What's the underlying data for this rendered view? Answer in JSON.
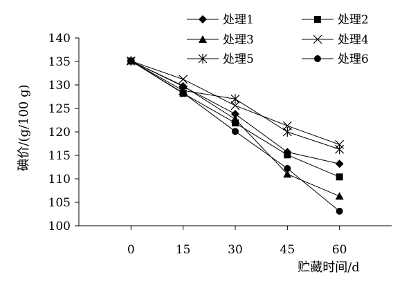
{
  "chart_data": {
    "type": "line",
    "title": "",
    "xlabel": "贮藏时间/d",
    "ylabel": "碘价/(g/100 g)",
    "x": [
      0,
      15,
      30,
      45,
      60
    ],
    "xlim": [
      -15,
      75
    ],
    "ylim": [
      100,
      140
    ],
    "yticks": [
      100,
      105,
      110,
      115,
      120,
      125,
      130,
      135,
      140
    ],
    "grid": false,
    "legend_position": "top-right",
    "series": [
      {
        "name": "处理1",
        "marker": "diamond",
        "values": [
          135.1,
          129.7,
          123.8,
          115.7,
          113.2
        ]
      },
      {
        "name": "处理2",
        "marker": "square",
        "values": [
          135.1,
          128.2,
          121.9,
          115.1,
          110.4
        ]
      },
      {
        "name": "处理3",
        "marker": "triangle",
        "values": [
          135.1,
          129.8,
          122.7,
          111.0,
          106.3
        ]
      },
      {
        "name": "处理4",
        "marker": "x",
        "values": [
          135.1,
          131.2,
          125.6,
          121.3,
          117.3
        ]
      },
      {
        "name": "处理5",
        "marker": "star",
        "values": [
          135.1,
          128.8,
          127.0,
          120.0,
          116.3
        ]
      },
      {
        "name": "处理6",
        "marker": "circle",
        "values": [
          135.1,
          128.3,
          120.1,
          112.2,
          103.1
        ]
      }
    ]
  }
}
